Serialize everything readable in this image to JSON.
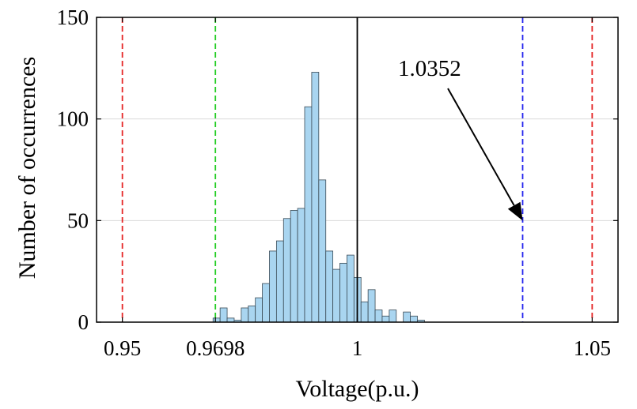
{
  "chart_data": {
    "type": "bar",
    "xlabel": "Voltage(p.u.)",
    "ylabel": "Number of occurrences",
    "xlim": [
      0.9445,
      1.0555
    ],
    "ylim": [
      0,
      150
    ],
    "xticks": [
      0.95,
      0.9698,
      1,
      1.05
    ],
    "xtick_labels": [
      "0.95",
      "0.9698",
      "1",
      "1.05"
    ],
    "yticks": [
      0,
      50,
      100,
      150
    ],
    "ytick_labels": [
      "0",
      "50",
      "100",
      "150"
    ],
    "grid": "horizontal",
    "bin_width": 0.0015,
    "bins": [
      {
        "x0": 0.9693,
        "count": 2
      },
      {
        "x0": 0.9708,
        "count": 7
      },
      {
        "x0": 0.9723,
        "count": 2
      },
      {
        "x0": 0.9738,
        "count": 1
      },
      {
        "x0": 0.9753,
        "count": 7
      },
      {
        "x0": 0.9768,
        "count": 8
      },
      {
        "x0": 0.9783,
        "count": 12
      },
      {
        "x0": 0.9798,
        "count": 19
      },
      {
        "x0": 0.9813,
        "count": 35
      },
      {
        "x0": 0.9828,
        "count": 40
      },
      {
        "x0": 0.9843,
        "count": 51
      },
      {
        "x0": 0.9858,
        "count": 55
      },
      {
        "x0": 0.9873,
        "count": 56
      },
      {
        "x0": 0.9888,
        "count": 106
      },
      {
        "x0": 0.9903,
        "count": 123
      },
      {
        "x0": 0.9918,
        "count": 70
      },
      {
        "x0": 0.9933,
        "count": 35
      },
      {
        "x0": 0.9948,
        "count": 26
      },
      {
        "x0": 0.9963,
        "count": 29
      },
      {
        "x0": 0.9978,
        "count": 33
      },
      {
        "x0": 0.9993,
        "count": 22
      },
      {
        "x0": 1.0008,
        "count": 10
      },
      {
        "x0": 1.0023,
        "count": 16
      },
      {
        "x0": 1.0038,
        "count": 6
      },
      {
        "x0": 1.0053,
        "count": 3
      },
      {
        "x0": 1.0068,
        "count": 6
      },
      {
        "x0": 1.0098,
        "count": 5
      },
      {
        "x0": 1.0113,
        "count": 3
      },
      {
        "x0": 1.0128,
        "count": 1
      }
    ],
    "bar_fill": "#a9d5f0",
    "bar_stroke": "#3a4a55",
    "reference_lines": [
      {
        "x": 0.95,
        "color": "#e52626",
        "style": "dashed"
      },
      {
        "x": 0.9698,
        "color": "#22cc22",
        "style": "dashed"
      },
      {
        "x": 1.0,
        "color": "#000000",
        "style": "solid"
      },
      {
        "x": 1.0352,
        "color": "#2222ee",
        "style": "dashed"
      },
      {
        "x": 1.05,
        "color": "#e52626",
        "style": "dashed"
      }
    ],
    "annotation": {
      "text": "1.0352",
      "points_to_x": 1.0352,
      "points_to_y": 50
    }
  }
}
